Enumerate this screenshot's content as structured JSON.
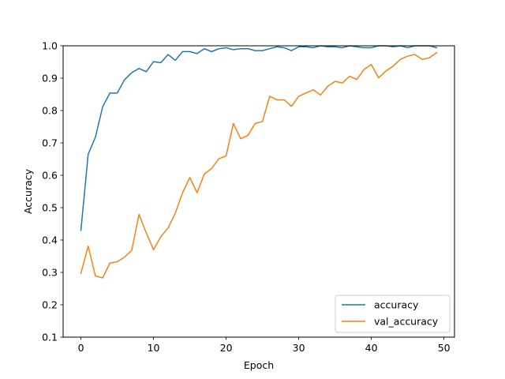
{
  "chart_data": {
    "type": "line",
    "xlabel": "Epoch",
    "ylabel": "Accuracy",
    "xlim": [
      -2.45,
      51.45
    ],
    "ylim": [
      0.1,
      1.0
    ],
    "xticks": [
      0,
      10,
      20,
      30,
      40,
      50
    ],
    "yticks": [
      0.1,
      0.2,
      0.3,
      0.4,
      0.5,
      0.6,
      0.7,
      0.8,
      0.9,
      1.0
    ],
    "xtick_labels": [
      "0",
      "10",
      "20",
      "30",
      "40",
      "50"
    ],
    "ytick_labels": [
      "0.1",
      "0.2",
      "0.3",
      "0.4",
      "0.5",
      "0.6",
      "0.7",
      "0.8",
      "0.9",
      "1.0"
    ],
    "grid": false,
    "legend_position": "lower-right",
    "x": [
      0,
      1,
      2,
      3,
      4,
      5,
      6,
      7,
      8,
      9,
      10,
      11,
      12,
      13,
      14,
      15,
      16,
      17,
      18,
      19,
      20,
      21,
      22,
      23,
      24,
      25,
      26,
      27,
      28,
      29,
      30,
      31,
      32,
      33,
      34,
      35,
      36,
      37,
      38,
      39,
      40,
      41,
      42,
      43,
      44,
      45,
      46,
      47,
      48,
      49
    ],
    "series": [
      {
        "name": "accuracy",
        "color": "#1f77b4",
        "values": [
          0.43,
          0.665,
          0.718,
          0.812,
          0.854,
          0.854,
          0.895,
          0.917,
          0.93,
          0.92,
          0.951,
          0.948,
          0.973,
          0.955,
          0.982,
          0.982,
          0.976,
          0.991,
          0.982,
          0.991,
          0.994,
          0.988,
          0.991,
          0.991,
          0.985,
          0.985,
          0.991,
          0.997,
          0.994,
          0.985,
          0.997,
          0.997,
          0.994,
          1.0,
          0.997,
          0.997,
          0.994,
          1.0,
          0.997,
          0.994,
          0.994,
          1.0,
          1.0,
          0.997,
          1.0,
          0.994,
          1.0,
          1.0,
          1.0,
          0.994
        ]
      },
      {
        "name": "val_accuracy",
        "color": "#ff7f0e",
        "values": [
          0.297,
          0.381,
          0.289,
          0.283,
          0.329,
          0.333,
          0.347,
          0.368,
          0.479,
          0.422,
          0.37,
          0.41,
          0.437,
          0.483,
          0.546,
          0.593,
          0.546,
          0.604,
          0.621,
          0.651,
          0.66,
          0.76,
          0.713,
          0.723,
          0.76,
          0.766,
          0.844,
          0.833,
          0.833,
          0.813,
          0.844,
          0.854,
          0.864,
          0.848,
          0.875,
          0.89,
          0.885,
          0.906,
          0.896,
          0.927,
          0.942,
          0.901,
          0.922,
          0.937,
          0.958,
          0.968,
          0.973,
          0.958,
          0.963,
          0.979
        ]
      }
    ]
  }
}
